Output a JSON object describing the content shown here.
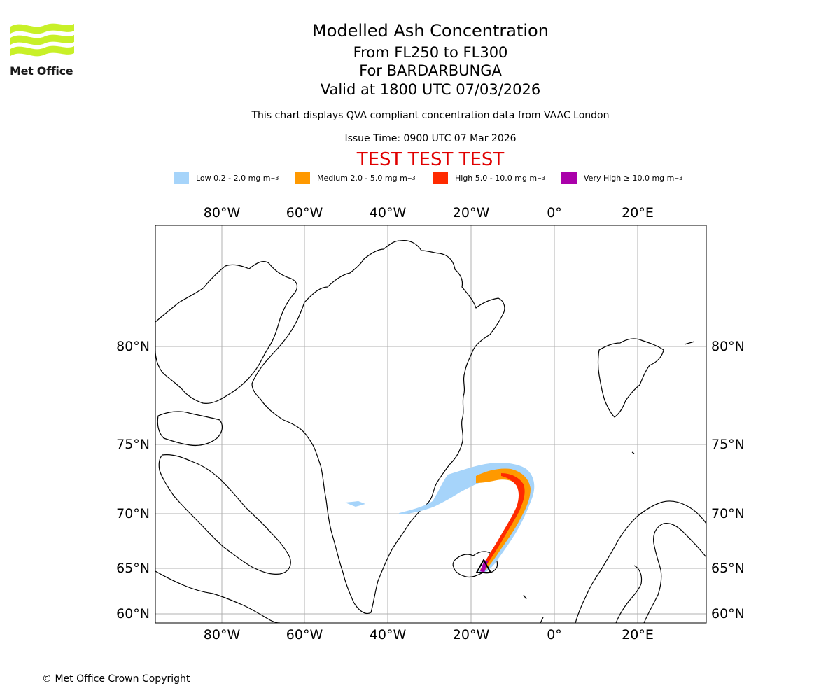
{
  "header": {
    "title": "Modelled Ash Concentration",
    "flight_levels": "From FL250 to FL300",
    "volcano": "For BARDARBUNGA",
    "valid": "Valid at 1800 UTC 07/03/2026",
    "qva_note": "This chart displays QVA compliant concentration data from VAAC London",
    "issue_time": "Issue Time: 0900 UTC 07 Mar 2026",
    "test_banner": "TEST TEST TEST"
  },
  "logo": {
    "text": "Met Office"
  },
  "legend": [
    {
      "label": "Low 0.2 - 2.0 mg m",
      "unit_sup": "−3",
      "color": "#a6d4fa"
    },
    {
      "label": "Medium 2.0 - 5.0 mg m",
      "unit_sup": "−3",
      "color": "#ff9900"
    },
    {
      "label": "High 5.0 - 10.0 mg m",
      "unit_sup": "−3",
      "color": "#ff2a00"
    },
    {
      "label": "Very High ≥ 10.0 mg m",
      "unit_sup": "−3",
      "color": "#aa00aa"
    }
  ],
  "map": {
    "lon_labels": [
      "80°W",
      "60°W",
      "40°W",
      "20°W",
      "0°",
      "20°E"
    ],
    "lat_labels": [
      "80°N",
      "75°N",
      "70°N",
      "65°N",
      "60°N"
    ]
  },
  "footer": {
    "copyright": "© Met Office Crown Copyright"
  }
}
